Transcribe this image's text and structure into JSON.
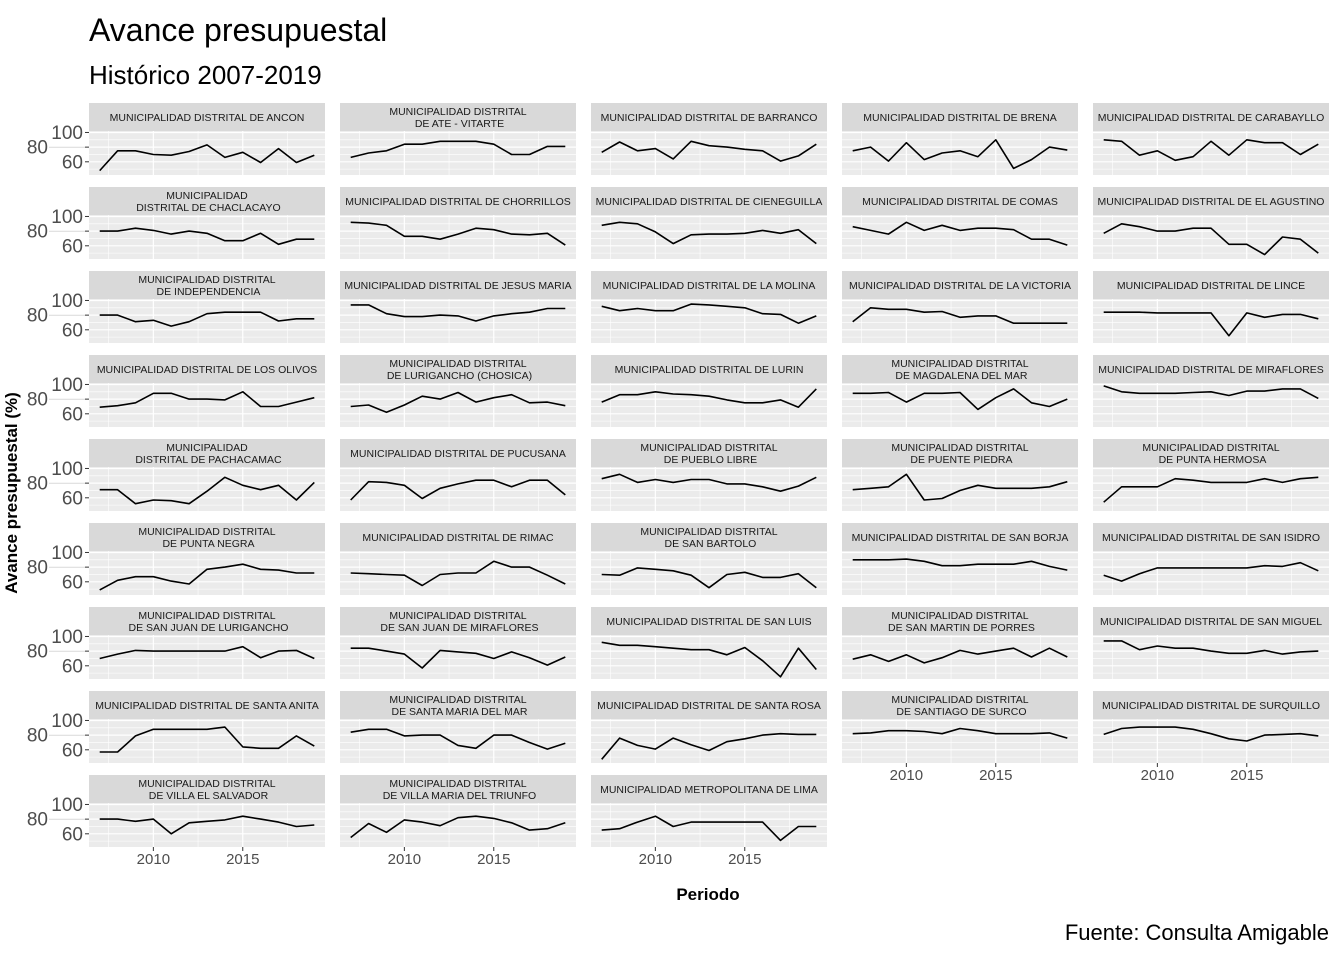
{
  "chart_data": {
    "type": "line",
    "facet": "wrap",
    "ncol": 5,
    "title": "Avance presupuestal",
    "subtitle": "Histórico 2007-2019",
    "xlabel": "Periodo",
    "ylabel": "Avance presupuestal (%)",
    "caption": "Fuente: Consulta Amigable",
    "x": [
      2007,
      2008,
      2009,
      2010,
      2011,
      2012,
      2013,
      2014,
      2015,
      2016,
      2017,
      2018,
      2019
    ],
    "xlim": [
      2006.4,
      2019.6
    ],
    "ylim": [
      42,
      102
    ],
    "x_ticks": [
      2010,
      2015
    ],
    "y_ticks": [
      100,
      80,
      60
    ],
    "grid": true,
    "colors": {
      "panel": "#EBEBEB",
      "strip": "#D9D9D9",
      "grid": "#FFFFFF",
      "line": "#000000",
      "axis_text": "#4D4D4D"
    },
    "panels": [
      {
        "name": "MUNICIPALIDAD DISTRITAL DE ANCON",
        "values": [
          48,
          75,
          75,
          70,
          69,
          74,
          83,
          66,
          73,
          59,
          78,
          59,
          69
        ]
      },
      {
        "name": "MUNICIPALIDAD DISTRITAL DE ATE - VITARTE",
        "values": [
          66,
          72,
          75,
          84,
          84,
          88,
          88,
          88,
          84,
          70,
          70,
          81,
          81
        ]
      },
      {
        "name": "MUNICIPALIDAD DISTRITAL DE BARRANCO",
        "values": [
          73,
          87,
          75,
          78,
          64,
          88,
          82,
          80,
          77,
          75,
          61,
          68,
          84
        ]
      },
      {
        "name": "MUNICIPALIDAD DISTRITAL DE BRENA",
        "values": [
          75,
          80,
          61,
          86,
          63,
          72,
          75,
          67,
          90,
          51,
          63,
          80,
          76
        ]
      },
      {
        "name": "MUNICIPALIDAD DISTRITAL DE CARABAYLLO",
        "values": [
          90,
          88,
          69,
          75,
          62,
          67,
          88,
          69,
          90,
          86,
          86,
          70,
          84
        ]
      },
      {
        "name": "MUNICIPALIDAD DISTRITAL DE CHACLACAYO",
        "values": [
          80,
          80,
          84,
          81,
          76,
          80,
          77,
          67,
          67,
          77,
          62,
          69,
          69
        ]
      },
      {
        "name": "MUNICIPALIDAD DISTRITAL DE CHORRILLOS",
        "values": [
          92,
          91,
          88,
          73,
          73,
          69,
          76,
          84,
          82,
          76,
          75,
          77,
          61
        ]
      },
      {
        "name": "MUNICIPALIDAD DISTRITAL DE CIENEGUILLA",
        "values": [
          88,
          92,
          90,
          79,
          63,
          75,
          76,
          76,
          77,
          81,
          77,
          82,
          63
        ]
      },
      {
        "name": "MUNICIPALIDAD DISTRITAL DE COMAS",
        "values": [
          86,
          81,
          76,
          92,
          81,
          88,
          81,
          84,
          84,
          82,
          69,
          69,
          61
        ]
      },
      {
        "name": "MUNICIPALIDAD DISTRITAL DE EL AGUSTINO",
        "values": [
          77,
          90,
          86,
          80,
          80,
          84,
          84,
          62,
          62,
          48,
          72,
          69,
          50
        ]
      },
      {
        "name": "MUNICIPALIDAD DISTRITAL DE INDEPENDENCIA",
        "values": [
          80,
          80,
          71,
          73,
          65,
          71,
          82,
          84,
          84,
          84,
          72,
          75,
          75
        ]
      },
      {
        "name": "MUNICIPALIDAD DISTRITAL DE JESUS MARIA",
        "values": [
          94,
          94,
          82,
          78,
          78,
          80,
          79,
          72,
          79,
          82,
          84,
          89,
          89
        ]
      },
      {
        "name": "MUNICIPALIDAD DISTRITAL DE LA MOLINA",
        "values": [
          92,
          86,
          89,
          86,
          86,
          95,
          94,
          92,
          90,
          82,
          81,
          69,
          79
        ]
      },
      {
        "name": "MUNICIPALIDAD DISTRITAL DE LA VICTORIA",
        "values": [
          71,
          90,
          88,
          88,
          84,
          85,
          77,
          79,
          79,
          69,
          69,
          69,
          69
        ]
      },
      {
        "name": "MUNICIPALIDAD DISTRITAL DE LINCE",
        "values": [
          84,
          84,
          84,
          83,
          83,
          83,
          83,
          52,
          83,
          77,
          81,
          81,
          75
        ]
      },
      {
        "name": "MUNICIPALIDAD DISTRITAL DE LOS OLIVOS",
        "values": [
          69,
          71,
          75,
          88,
          88,
          80,
          80,
          79,
          90,
          70,
          70,
          76,
          82
        ]
      },
      {
        "name": "MUNICIPALIDAD DISTRITAL DE LURIGANCHO (CHOSICA)",
        "values": [
          70,
          72,
          62,
          72,
          84,
          80,
          89,
          76,
          82,
          86,
          75,
          76,
          71
        ]
      },
      {
        "name": "MUNICIPALIDAD DISTRITAL DE LURIN",
        "values": [
          76,
          86,
          86,
          90,
          87,
          86,
          84,
          79,
          75,
          75,
          79,
          69,
          94
        ]
      },
      {
        "name": "MUNICIPALIDAD DISTRITAL DE MAGDALENA DEL MAR",
        "values": [
          88,
          88,
          89,
          76,
          88,
          88,
          89,
          66,
          82,
          94,
          75,
          70,
          80
        ]
      },
      {
        "name": "MUNICIPALIDAD DISTRITAL DE MIRAFLORES",
        "values": [
          98,
          90,
          88,
          88,
          88,
          89,
          90,
          85,
          91,
          91,
          94,
          94,
          81
        ]
      },
      {
        "name": "MUNICIPALIDAD DISTRITAL DE PACHACAMAC",
        "values": [
          71,
          71,
          52,
          57,
          56,
          52,
          69,
          88,
          77,
          71,
          77,
          57,
          81
        ]
      },
      {
        "name": "MUNICIPALIDAD DISTRITAL DE PUCUSANA",
        "values": [
          57,
          82,
          81,
          77,
          59,
          73,
          79,
          84,
          84,
          75,
          84,
          84,
          64
        ]
      },
      {
        "name": "MUNICIPALIDAD DISTRITAL DE PUEBLO LIBRE",
        "values": [
          86,
          92,
          81,
          85,
          81,
          85,
          85,
          79,
          79,
          75,
          69,
          76,
          88
        ]
      },
      {
        "name": "MUNICIPALIDAD DISTRITAL DE PUENTE PIEDRA",
        "values": [
          71,
          73,
          75,
          92,
          57,
          59,
          70,
          77,
          73,
          73,
          73,
          75,
          82
        ]
      },
      {
        "name": "MUNICIPALIDAD DISTRITAL DE PUNTA HERMOSA",
        "values": [
          54,
          75,
          75,
          75,
          86,
          84,
          81,
          81,
          81,
          86,
          81,
          86,
          88
        ]
      },
      {
        "name": "MUNICIPALIDAD DISTRITAL DE PUNTA NEGRA",
        "values": [
          49,
          62,
          67,
          67,
          61,
          57,
          77,
          80,
          84,
          77,
          76,
          72,
          72
        ]
      },
      {
        "name": "MUNICIPALIDAD DISTRITAL DE RIMAC",
        "values": [
          72,
          71,
          70,
          69,
          55,
          70,
          72,
          72,
          88,
          80,
          80,
          69,
          57
        ]
      },
      {
        "name": "MUNICIPALIDAD DISTRITAL DE SAN BARTOLO",
        "values": [
          70,
          69,
          79,
          77,
          75,
          69,
          52,
          70,
          73,
          66,
          66,
          71,
          52
        ]
      },
      {
        "name": "MUNICIPALIDAD DISTRITAL DE SAN BORJA",
        "values": [
          90,
          90,
          90,
          91,
          88,
          82,
          82,
          84,
          84,
          84,
          88,
          81,
          76
        ]
      },
      {
        "name": "MUNICIPALIDAD DISTRITAL DE SAN ISIDRO",
        "values": [
          69,
          61,
          71,
          79,
          79,
          79,
          79,
          79,
          79,
          82,
          81,
          86,
          75
        ]
      },
      {
        "name": "MUNICIPALIDAD DISTRITAL DE SAN JUAN DE LURIGANCHO",
        "values": [
          70,
          76,
          81,
          80,
          80,
          80,
          80,
          80,
          86,
          71,
          80,
          81,
          70
        ]
      },
      {
        "name": "MUNICIPALIDAD DISTRITAL DE SAN JUAN DE MIRAFLORES",
        "values": [
          84,
          84,
          80,
          76,
          57,
          81,
          79,
          77,
          70,
          79,
          71,
          61,
          72
        ]
      },
      {
        "name": "MUNICIPALIDAD DISTRITAL DE SAN LUIS",
        "values": [
          92,
          88,
          88,
          86,
          84,
          82,
          82,
          75,
          85,
          67,
          45,
          84,
          55
        ]
      },
      {
        "name": "MUNICIPALIDAD DISTRITAL DE SAN MARTIN DE PORRES",
        "values": [
          69,
          75,
          66,
          75,
          64,
          71,
          81,
          76,
          80,
          84,
          72,
          84,
          72
        ]
      },
      {
        "name": "MUNICIPALIDAD DISTRITAL DE SAN MIGUEL",
        "values": [
          94,
          94,
          82,
          87,
          84,
          84,
          80,
          77,
          77,
          81,
          76,
          79,
          80
        ]
      },
      {
        "name": "MUNICIPALIDAD DISTRITAL DE SANTA ANITA",
        "values": [
          57,
          57,
          79,
          88,
          88,
          88,
          88,
          91,
          64,
          62,
          62,
          79,
          65
        ]
      },
      {
        "name": "MUNICIPALIDAD DISTRITAL DE SANTA MARIA DEL MAR",
        "values": [
          84,
          88,
          88,
          79,
          80,
          80,
          66,
          62,
          80,
          80,
          70,
          61,
          69
        ]
      },
      {
        "name": "MUNICIPALIDAD DISTRITAL DE SANTA ROSA",
        "values": [
          47,
          76,
          66,
          61,
          76,
          67,
          59,
          71,
          75,
          80,
          82,
          81,
          81
        ]
      },
      {
        "name": "MUNICIPALIDAD DISTRITAL DE SANTIAGO DE SURCO",
        "values": [
          82,
          83,
          86,
          86,
          85,
          82,
          89,
          86,
          82,
          82,
          82,
          83,
          76
        ]
      },
      {
        "name": "MUNICIPALIDAD DISTRITAL DE SURQUILLO",
        "values": [
          81,
          89,
          91,
          91,
          91,
          88,
          82,
          75,
          72,
          80,
          81,
          82,
          79
        ]
      },
      {
        "name": "MUNICIPALIDAD DISTRITAL DE VILLA EL SALVADOR",
        "values": [
          80,
          80,
          77,
          80,
          60,
          75,
          77,
          79,
          84,
          80,
          76,
          70,
          72
        ]
      },
      {
        "name": "MUNICIPALIDAD DISTRITAL DE VILLA MARIA DEL TRIUNFO",
        "values": [
          55,
          74,
          62,
          79,
          76,
          71,
          82,
          84,
          81,
          75,
          65,
          67,
          75
        ]
      },
      {
        "name": "MUNICIPALIDAD METROPOLITANA DE LIMA",
        "values": [
          65,
          67,
          76,
          84,
          70,
          76,
          76,
          76,
          76,
          76,
          51,
          70,
          70
        ]
      }
    ]
  }
}
